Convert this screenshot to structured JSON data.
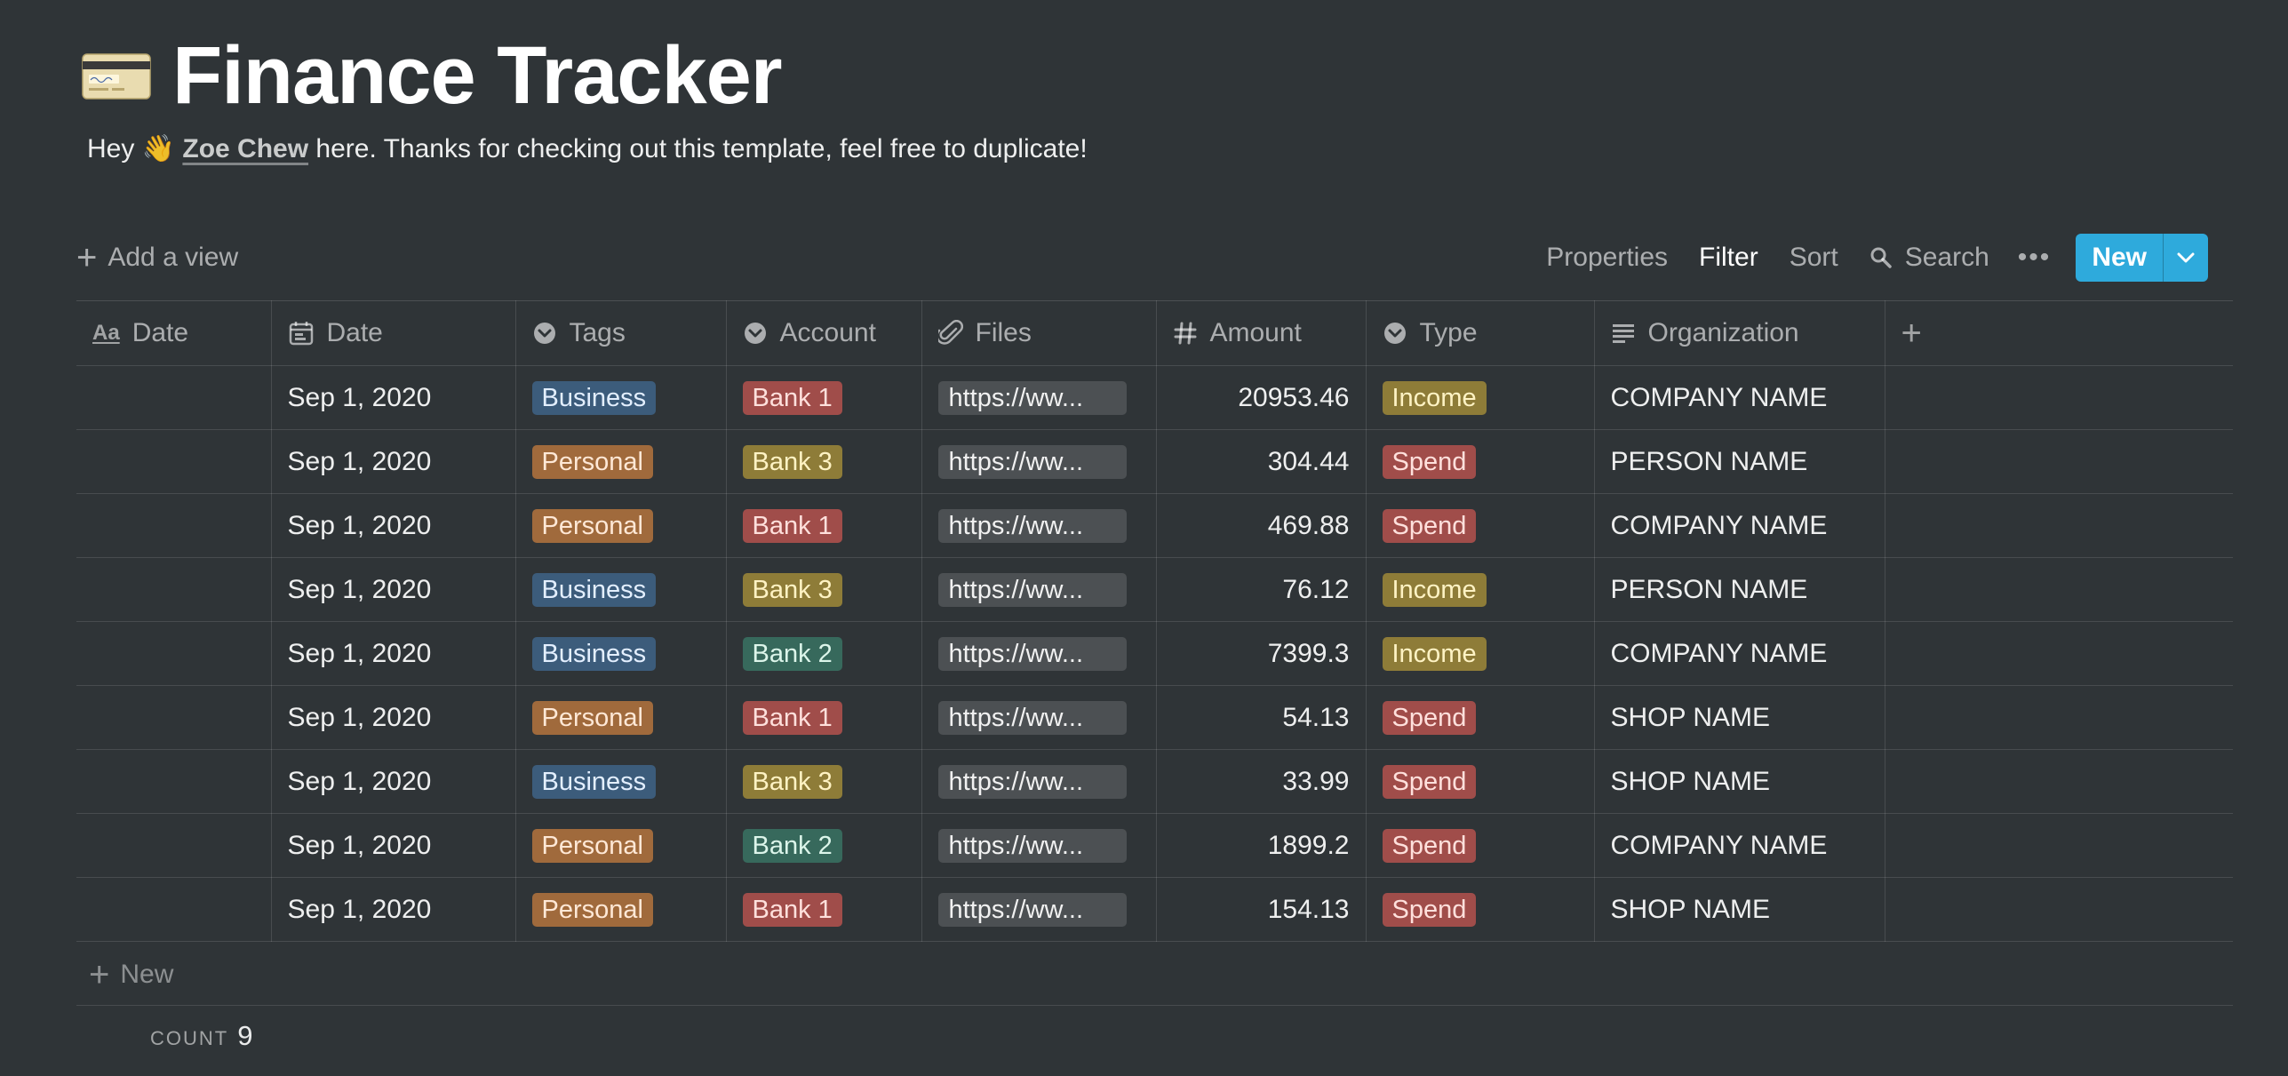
{
  "page": {
    "icon": "credit-card-icon",
    "title": "Finance Tracker",
    "subtitle_pre": "Hey 👋 ",
    "subtitle_author": "Zoe Chew",
    "subtitle_post": " here. Thanks for checking out this template, feel free to duplicate!"
  },
  "toolbar": {
    "add_view": "Add a view",
    "properties": "Properties",
    "filter": "Filter",
    "sort": "Sort",
    "search": "Search",
    "more": "•••",
    "new": "New",
    "new_button_color": "#2eaadc"
  },
  "columns": [
    {
      "label": "Date",
      "icon": "text-aa-icon"
    },
    {
      "label": "Date",
      "icon": "calendar-icon"
    },
    {
      "label": "Tags",
      "icon": "select-icon"
    },
    {
      "label": "Account",
      "icon": "select-icon"
    },
    {
      "label": "Files",
      "icon": "paperclip-icon"
    },
    {
      "label": "Amount",
      "icon": "hash-icon"
    },
    {
      "label": "Type",
      "icon": "select-icon"
    },
    {
      "label": "Organization",
      "icon": "text-lines-icon"
    }
  ],
  "tag_colors": {
    "Business": "#3c5c7b",
    "Personal": "#a06a3c",
    "Bank 1": "#a04d4a",
    "Bank 2": "#37695c",
    "Bank 3": "#8e7c38",
    "Income": "#8e7c38",
    "Spend": "#a04d4a"
  },
  "rows": [
    {
      "name": "",
      "date": "Sep 1, 2020",
      "tag": "Business",
      "account": "Bank 1",
      "file": "https://ww...",
      "amount": "20953.46",
      "type": "Income",
      "org": "COMPANY NAME"
    },
    {
      "name": "",
      "date": "Sep 1, 2020",
      "tag": "Personal",
      "account": "Bank 3",
      "file": "https://ww...",
      "amount": "304.44",
      "type": "Spend",
      "org": "PERSON NAME"
    },
    {
      "name": "",
      "date": "Sep 1, 2020",
      "tag": "Personal",
      "account": "Bank 1",
      "file": "https://ww...",
      "amount": "469.88",
      "type": "Spend",
      "org": "COMPANY NAME"
    },
    {
      "name": "",
      "date": "Sep 1, 2020",
      "tag": "Business",
      "account": "Bank 3",
      "file": "https://ww...",
      "amount": "76.12",
      "type": "Income",
      "org": "PERSON NAME"
    },
    {
      "name": "",
      "date": "Sep 1, 2020",
      "tag": "Business",
      "account": "Bank 2",
      "file": "https://ww...",
      "amount": "7399.3",
      "type": "Income",
      "org": "COMPANY NAME"
    },
    {
      "name": "",
      "date": "Sep 1, 2020",
      "tag": "Personal",
      "account": "Bank 1",
      "file": "https://ww...",
      "amount": "54.13",
      "type": "Spend",
      "org": "SHOP NAME"
    },
    {
      "name": "",
      "date": "Sep 1, 2020",
      "tag": "Business",
      "account": "Bank 3",
      "file": "https://ww...",
      "amount": "33.99",
      "type": "Spend",
      "org": "SHOP NAME"
    },
    {
      "name": "",
      "date": "Sep 1, 2020",
      "tag": "Personal",
      "account": "Bank 2",
      "file": "https://ww...",
      "amount": "1899.2",
      "type": "Spend",
      "org": "COMPANY NAME"
    },
    {
      "name": "",
      "date": "Sep 1, 2020",
      "tag": "Personal",
      "account": "Bank 1",
      "file": "https://ww...",
      "amount": "154.13",
      "type": "Spend",
      "org": "SHOP NAME"
    }
  ],
  "footer": {
    "new_label": "New",
    "count_label": "COUNT",
    "count_value": "9"
  }
}
